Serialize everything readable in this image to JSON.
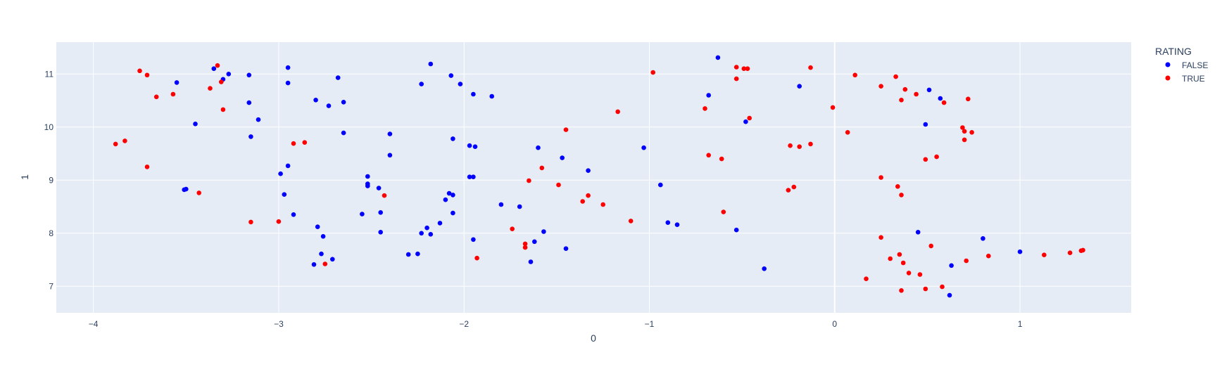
{
  "chart_data": {
    "type": "scatter",
    "xlabel": "0",
    "ylabel": "1",
    "xlim": [
      -4.2,
      1.6
    ],
    "ylim": [
      6.5,
      11.6
    ],
    "x_ticks": [
      -4,
      -3,
      -2,
      -1,
      0,
      1
    ],
    "x_tick_labels": [
      "−4",
      "−3",
      "−2",
      "−1",
      "0",
      "1"
    ],
    "y_ticks": [
      7,
      8,
      9,
      10,
      11
    ],
    "y_tick_labels": [
      "7",
      "8",
      "9",
      "10",
      "11"
    ],
    "grid": true,
    "legend": {
      "title": "RATING",
      "placement": "right"
    },
    "series": [
      {
        "name": "FALSE",
        "color": "#0000ff",
        "points": [
          [
            -3.35,
            11.1
          ],
          [
            -3.27,
            11.0
          ],
          [
            -3.3,
            10.9
          ],
          [
            -3.16,
            10.98
          ],
          [
            -2.95,
            11.12
          ],
          [
            -2.95,
            10.83
          ],
          [
            -2.68,
            10.93
          ],
          [
            -3.55,
            10.84
          ],
          [
            -3.16,
            10.46
          ],
          [
            -3.11,
            10.14
          ],
          [
            -3.45,
            10.06
          ],
          [
            -3.15,
            9.82
          ],
          [
            -2.8,
            10.51
          ],
          [
            -2.73,
            10.4
          ],
          [
            -2.65,
            10.47
          ],
          [
            -2.65,
            9.89
          ],
          [
            -2.4,
            9.87
          ],
          [
            -2.4,
            9.47
          ],
          [
            -2.18,
            11.19
          ],
          [
            -2.23,
            10.81
          ],
          [
            -2.07,
            10.97
          ],
          [
            -2.02,
            10.81
          ],
          [
            -1.95,
            10.62
          ],
          [
            -1.85,
            10.58
          ],
          [
            -2.06,
            9.78
          ],
          [
            -1.97,
            9.65
          ],
          [
            -1.94,
            9.63
          ],
          [
            -1.6,
            9.61
          ],
          [
            -1.47,
            9.42
          ],
          [
            -1.03,
            9.61
          ],
          [
            -2.52,
            9.07
          ],
          [
            -2.52,
            8.93
          ],
          [
            -2.52,
            8.89
          ],
          [
            -2.46,
            8.85
          ],
          [
            -2.45,
            8.39
          ],
          [
            -2.55,
            8.36
          ],
          [
            -2.45,
            8.02
          ],
          [
            -2.99,
            9.12
          ],
          [
            -2.95,
            9.27
          ],
          [
            -2.97,
            8.73
          ],
          [
            -2.92,
            8.35
          ],
          [
            -2.79,
            8.12
          ],
          [
            -2.76,
            7.94
          ],
          [
            -2.71,
            7.51
          ],
          [
            -2.77,
            7.61
          ],
          [
            -2.81,
            7.41
          ],
          [
            -3.51,
            8.82
          ],
          [
            -3.5,
            8.83
          ],
          [
            -1.97,
            9.06
          ],
          [
            -1.95,
            9.06
          ],
          [
            -2.08,
            8.75
          ],
          [
            -2.06,
            8.72
          ],
          [
            -2.1,
            8.63
          ],
          [
            -2.06,
            8.38
          ],
          [
            -2.13,
            8.19
          ],
          [
            -2.2,
            8.1
          ],
          [
            -2.23,
            8.0
          ],
          [
            -2.18,
            7.98
          ],
          [
            -2.3,
            7.6
          ],
          [
            -2.25,
            7.61
          ],
          [
            -1.95,
            7.88
          ],
          [
            -1.8,
            8.54
          ],
          [
            -1.7,
            8.5
          ],
          [
            -1.57,
            8.03
          ],
          [
            -1.62,
            7.84
          ],
          [
            -1.64,
            7.46
          ],
          [
            -1.45,
            7.71
          ],
          [
            -1.33,
            9.18
          ],
          [
            -0.94,
            8.91
          ],
          [
            -0.9,
            8.2
          ],
          [
            -0.85,
            8.16
          ],
          [
            -0.63,
            11.31
          ],
          [
            -0.68,
            10.6
          ],
          [
            -0.48,
            10.1
          ],
          [
            -0.19,
            10.77
          ],
          [
            -0.53,
            8.06
          ],
          [
            -0.38,
            7.33
          ],
          [
            0.51,
            10.7
          ],
          [
            0.57,
            10.54
          ],
          [
            0.49,
            10.05
          ],
          [
            0.45,
            8.02
          ],
          [
            0.8,
            7.9
          ],
          [
            0.63,
            7.39
          ],
          [
            0.62,
            6.83
          ],
          [
            1.0,
            7.65
          ]
        ]
      },
      {
        "name": "TRUE",
        "color": "#ff0000",
        "points": [
          [
            -3.75,
            11.06
          ],
          [
            -3.71,
            10.98
          ],
          [
            -3.33,
            11.16
          ],
          [
            -3.37,
            10.73
          ],
          [
            -3.31,
            10.85
          ],
          [
            -3.3,
            10.33
          ],
          [
            -3.66,
            10.57
          ],
          [
            -3.57,
            10.62
          ],
          [
            -3.88,
            9.68
          ],
          [
            -3.83,
            9.74
          ],
          [
            -3.71,
            9.25
          ],
          [
            -3.43,
            8.76
          ],
          [
            -3.15,
            8.21
          ],
          [
            -2.92,
            9.69
          ],
          [
            -2.86,
            9.71
          ],
          [
            -3.0,
            8.22
          ],
          [
            -2.75,
            7.42
          ],
          [
            -2.43,
            8.71
          ],
          [
            -1.93,
            7.53
          ],
          [
            -1.74,
            8.08
          ],
          [
            -1.67,
            7.8
          ],
          [
            -1.67,
            7.73
          ],
          [
            -1.65,
            8.99
          ],
          [
            -1.58,
            9.23
          ],
          [
            -1.49,
            8.91
          ],
          [
            -1.45,
            9.95
          ],
          [
            -1.36,
            8.6
          ],
          [
            -1.33,
            8.71
          ],
          [
            -1.25,
            8.54
          ],
          [
            -1.17,
            10.29
          ],
          [
            -1.1,
            8.23
          ],
          [
            -0.98,
            11.03
          ],
          [
            -0.7,
            10.35
          ],
          [
            -0.68,
            9.47
          ],
          [
            -0.61,
            9.4
          ],
          [
            -0.6,
            8.4
          ],
          [
            -0.53,
            11.13
          ],
          [
            -0.53,
            10.91
          ],
          [
            -0.49,
            11.1
          ],
          [
            -0.47,
            11.1
          ],
          [
            -0.46,
            10.17
          ],
          [
            -0.24,
            9.65
          ],
          [
            -0.19,
            9.63
          ],
          [
            -0.13,
            9.68
          ],
          [
            -0.25,
            8.81
          ],
          [
            -0.22,
            8.87
          ],
          [
            -0.13,
            11.12
          ],
          [
            -0.01,
            10.37
          ],
          [
            0.07,
            9.9
          ],
          [
            0.11,
            10.98
          ],
          [
            0.25,
            10.77
          ],
          [
            0.33,
            10.95
          ],
          [
            0.36,
            10.51
          ],
          [
            0.38,
            10.71
          ],
          [
            0.44,
            10.62
          ],
          [
            0.59,
            10.46
          ],
          [
            0.72,
            10.53
          ],
          [
            0.69,
            9.99
          ],
          [
            0.7,
            9.92
          ],
          [
            0.74,
            9.9
          ],
          [
            0.7,
            9.76
          ],
          [
            0.49,
            9.39
          ],
          [
            0.55,
            9.44
          ],
          [
            0.25,
            9.05
          ],
          [
            0.34,
            8.88
          ],
          [
            0.36,
            8.72
          ],
          [
            0.25,
            7.92
          ],
          [
            0.3,
            7.52
          ],
          [
            0.35,
            7.6
          ],
          [
            0.37,
            7.44
          ],
          [
            0.4,
            7.25
          ],
          [
            0.46,
            7.22
          ],
          [
            0.52,
            7.76
          ],
          [
            0.71,
            7.48
          ],
          [
            0.83,
            7.57
          ],
          [
            0.17,
            7.14
          ],
          [
            0.36,
            6.92
          ],
          [
            0.49,
            6.95
          ],
          [
            0.58,
            6.99
          ],
          [
            1.13,
            7.59
          ],
          [
            1.27,
            7.63
          ],
          [
            1.33,
            7.67
          ],
          [
            1.34,
            7.68
          ]
        ]
      }
    ]
  }
}
